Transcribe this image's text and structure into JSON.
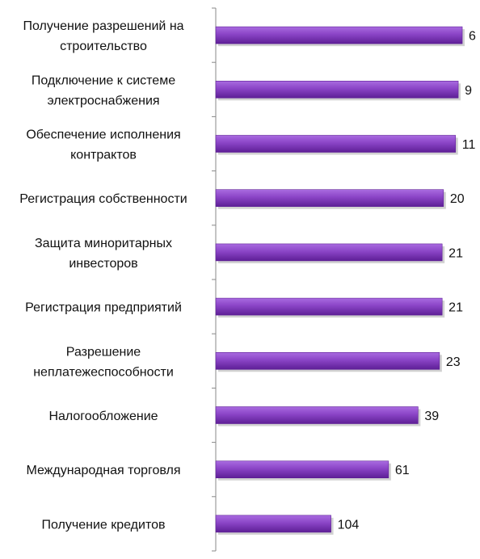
{
  "chart_data": {
    "type": "bar",
    "orientation": "horizontal",
    "axis_reversed": true,
    "categories": [
      [
        "Получение разрешений  на",
        "строительство"
      ],
      [
        "Подключение к системе",
        "электроснабжения"
      ],
      [
        "Обеспечение исполнения",
        "контрактов"
      ],
      [
        "Регистрация собственности"
      ],
      [
        "Защита миноритарных",
        "инвесторов"
      ],
      [
        "Регистрация предприятий"
      ],
      [
        "Разрешение",
        "неплатежеспособности"
      ],
      [
        "Налогообложение"
      ],
      [
        "Международная торговля"
      ],
      [
        "Получение кредитов"
      ]
    ],
    "values": [
      6,
      9,
      11,
      20,
      21,
      21,
      23,
      39,
      61,
      104
    ],
    "value_labels": [
      "6",
      "9",
      "11",
      "20",
      "21",
      "21",
      "23",
      "39",
      "61",
      "104"
    ],
    "xlim": [
      0,
      190
    ],
    "grid": false,
    "legend": "none",
    "bar_color": "#8a44c6",
    "bar_color_dark": "#5e1f96",
    "bar_color_light": "#a96be0"
  }
}
